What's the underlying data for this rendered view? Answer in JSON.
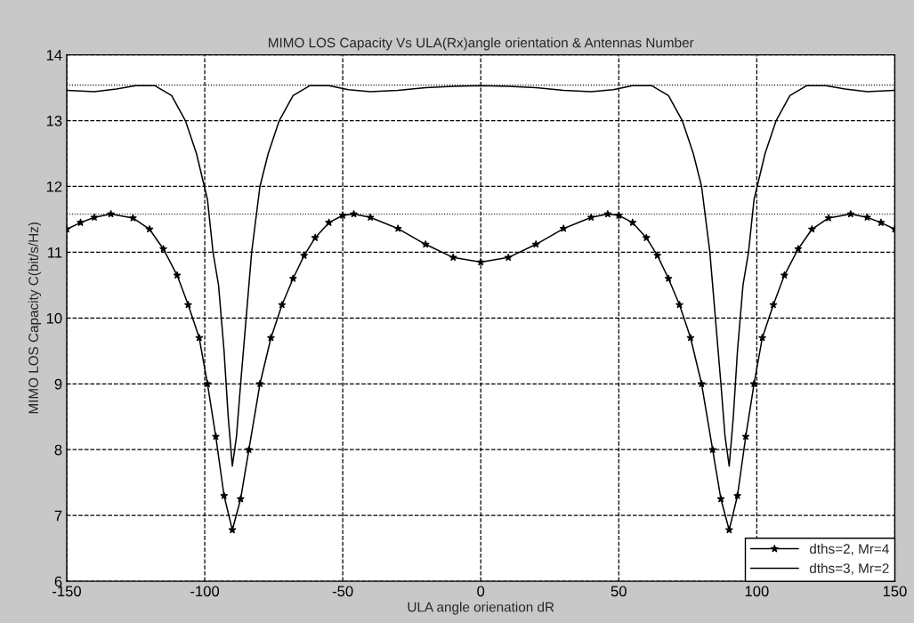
{
  "chart_data": {
    "type": "line",
    "title": "MIMO LOS Capacity Vs ULA(Rx)angle orientation & Antennas Number",
    "xlabel": "ULA angle orienation dR",
    "ylabel": "MIMO LOS Capacity C(bit/s/Hz)",
    "xlim": [
      -150,
      150
    ],
    "xticks": [
      -150,
      -100,
      -50,
      0,
      50,
      100,
      150
    ],
    "ylim": [
      6,
      14
    ],
    "yticks": [
      6,
      7,
      8,
      9,
      10,
      11,
      12,
      13,
      14
    ],
    "grid": true,
    "legend": "bottom right",
    "line_style": "solid",
    "series": [
      {
        "name": "dths=2, Mr=4",
        "color": "#000000",
        "marker": "star",
        "x": [
          -150,
          -145,
          -140,
          -134,
          -126,
          -120,
          -115,
          -110,
          -106,
          -102,
          -99,
          -96,
          -93,
          -90,
          -87,
          -84,
          -80,
          -76,
          -72,
          -68,
          -64,
          -60,
          -55,
          -50,
          -46,
          -40,
          -30,
          -20,
          -10,
          0,
          10,
          20,
          30,
          40,
          46,
          50,
          55,
          60,
          64,
          68,
          72,
          76,
          80,
          84,
          87,
          90,
          93,
          96,
          99,
          102,
          106,
          110,
          115,
          120,
          126,
          134,
          140,
          145,
          150
        ],
        "values": [
          11.35,
          11.45,
          11.53,
          11.58,
          11.52,
          11.35,
          11.05,
          10.65,
          10.2,
          9.7,
          9.0,
          8.2,
          7.3,
          6.78,
          7.25,
          8.0,
          9.0,
          9.7,
          10.2,
          10.6,
          10.95,
          11.22,
          11.45,
          11.56,
          11.58,
          11.53,
          11.36,
          11.12,
          10.92,
          10.85,
          10.92,
          11.12,
          11.36,
          11.53,
          11.58,
          11.56,
          11.45,
          11.22,
          10.95,
          10.6,
          10.2,
          9.7,
          9.0,
          8.0,
          7.25,
          6.78,
          7.3,
          8.2,
          9.0,
          9.7,
          10.2,
          10.65,
          11.05,
          11.35,
          11.52,
          11.58,
          11.53,
          11.45,
          11.35
        ]
      },
      {
        "name": "dths=3, Mr=2",
        "color": "#000000",
        "marker": "none",
        "x": [
          -150,
          -140,
          -132,
          -125,
          -118,
          -112,
          -107,
          -103,
          -99,
          -97,
          -95,
          -93,
          -91.5,
          -90,
          -88.5,
          -87,
          -85,
          -83,
          -80,
          -77,
          -73,
          -68,
          -62,
          -55,
          -48,
          -40,
          -30,
          -20,
          -10,
          0,
          10,
          20,
          30,
          40,
          48,
          55,
          62,
          68,
          73,
          77,
          80,
          83,
          85,
          87,
          88.5,
          90,
          91.5,
          93,
          95,
          97,
          99,
          103,
          107,
          112,
          118,
          125,
          132,
          140,
          150
        ],
        "values": [
          13.46,
          13.44,
          13.48,
          13.53,
          13.53,
          13.38,
          13.0,
          12.5,
          11.8,
          11.0,
          10.5,
          9.5,
          8.5,
          7.75,
          8.2,
          9.0,
          10.0,
          11.0,
          12.0,
          12.5,
          13.0,
          13.38,
          13.53,
          13.53,
          13.47,
          13.44,
          13.46,
          13.5,
          13.52,
          13.53,
          13.52,
          13.5,
          13.46,
          13.44,
          13.47,
          13.53,
          13.53,
          13.38,
          13.0,
          12.5,
          12.0,
          11.0,
          10.0,
          9.0,
          8.2,
          7.75,
          8.5,
          9.5,
          10.5,
          11.0,
          11.8,
          12.5,
          13.0,
          13.38,
          13.53,
          13.53,
          13.48,
          13.44,
          13.46
        ]
      }
    ],
    "ref_lines": [
      {
        "axis": "y",
        "value": 13.54,
        "color": "#000000",
        "line_style": "dotted"
      },
      {
        "axis": "y",
        "value": 11.58,
        "color": "#000000",
        "line_style": "dotted"
      }
    ]
  }
}
